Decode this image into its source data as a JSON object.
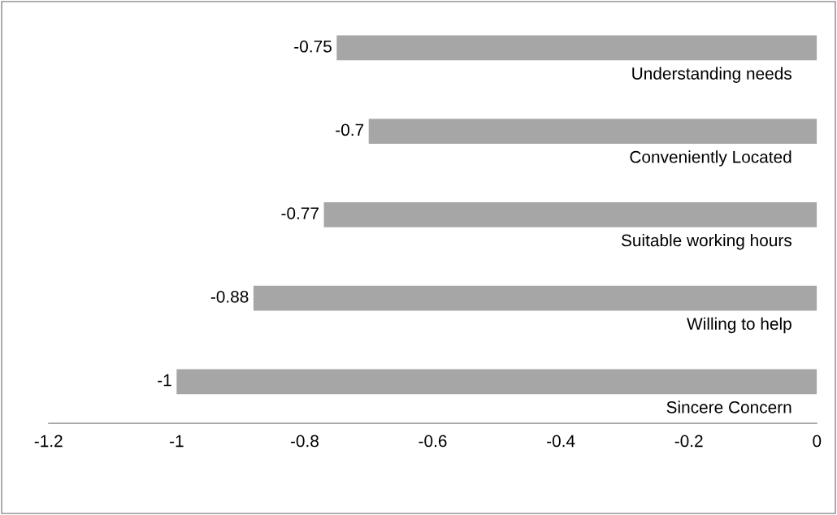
{
  "chart_data": {
    "type": "bar",
    "orientation": "horizontal",
    "categories": [
      "Understanding needs",
      "Conveniently Located",
      "Suitable working hours",
      "Willing to help",
      "Sincere Concern"
    ],
    "values": [
      -0.75,
      -0.7,
      -0.77,
      -0.88,
      -1
    ],
    "color": "#a6a6a6",
    "data_labels": true,
    "grid": false,
    "legend": false,
    "xlim": [
      -1.2,
      0
    ],
    "xticks": [
      -1.2,
      -1,
      -0.8,
      -0.6,
      -0.4,
      -0.2,
      0
    ]
  }
}
